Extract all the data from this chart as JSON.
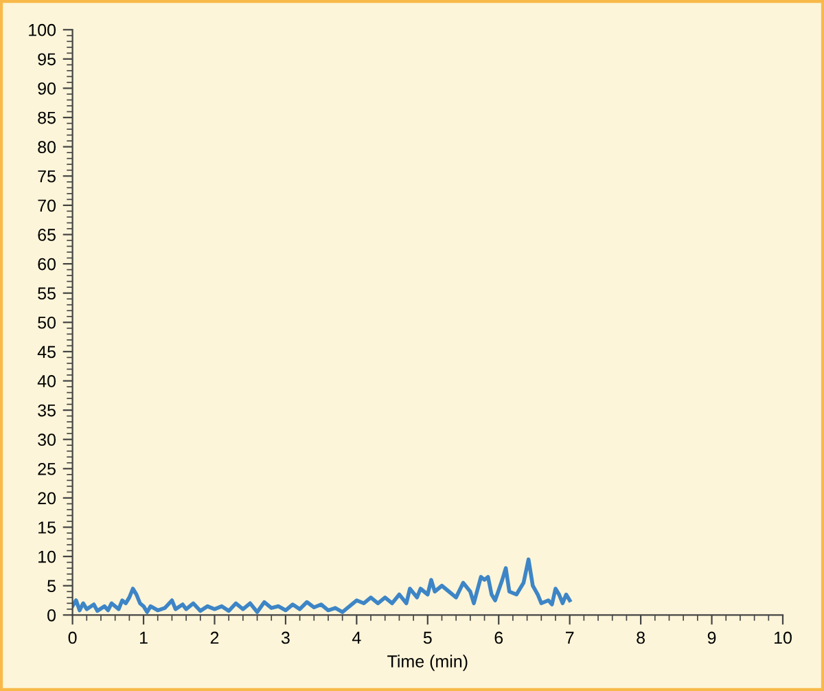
{
  "chart_data": {
    "type": "line",
    "xlabel": "Time (min)",
    "xlim": [
      0,
      10
    ],
    "xticks": [
      0,
      1,
      2,
      3,
      4,
      5,
      6,
      7,
      8,
      9,
      10
    ],
    "ylim": [
      0,
      100
    ],
    "yticks": [
      0,
      5,
      10,
      15,
      20,
      25,
      30,
      35,
      40,
      45,
      50,
      55,
      60,
      65,
      70,
      75,
      80,
      85,
      90,
      95,
      100
    ],
    "grid": false,
    "legend": false,
    "marker": "none",
    "line_style": "solid",
    "series": [
      {
        "color": "#3d85c6",
        "x": [
          0,
          0.05,
          0.1,
          0.15,
          0.2,
          0.3,
          0.35,
          0.45,
          0.5,
          0.55,
          0.65,
          0.7,
          0.75,
          0.8,
          0.85,
          0.9,
          0.95,
          1.0,
          1.05,
          1.1,
          1.2,
          1.3,
          1.4,
          1.45,
          1.55,
          1.6,
          1.7,
          1.8,
          1.9,
          2.0,
          2.1,
          2.2,
          2.3,
          2.4,
          2.5,
          2.6,
          2.7,
          2.8,
          2.9,
          3.0,
          3.1,
          3.2,
          3.3,
          3.4,
          3.5,
          3.6,
          3.7,
          3.8,
          3.9,
          4.0,
          4.1,
          4.2,
          4.3,
          4.4,
          4.5,
          4.6,
          4.7,
          4.75,
          4.85,
          4.9,
          5.0,
          5.05,
          5.1,
          5.2,
          5.3,
          5.4,
          5.5,
          5.6,
          5.65,
          5.75,
          5.8,
          5.85,
          5.9,
          5.95,
          6.05,
          6.1,
          6.15,
          6.25,
          6.3,
          6.35,
          6.42,
          6.48,
          6.55,
          6.6,
          6.7,
          6.75,
          6.8,
          6.85,
          6.9,
          6.95,
          7.0
        ],
        "values": [
          1.5,
          2.5,
          0.8,
          2,
          1,
          1.8,
          0.7,
          1.5,
          0.8,
          2,
          1,
          2.5,
          2,
          3,
          4.5,
          3.5,
          2,
          1.5,
          0.5,
          1.5,
          0.8,
          1.2,
          2.5,
          1,
          1.8,
          1,
          2,
          0.7,
          1.5,
          1,
          1.5,
          0.7,
          2,
          1,
          2,
          0.5,
          2.2,
          1.2,
          1.5,
          0.8,
          1.8,
          1,
          2.2,
          1.3,
          1.8,
          0.8,
          1.2,
          0.5,
          1.5,
          2.5,
          2,
          3,
          2,
          3,
          2,
          3.5,
          2,
          4.5,
          3,
          4.5,
          3.5,
          6,
          4,
          5,
          4,
          3,
          5.5,
          4,
          2,
          6.5,
          6,
          6.5,
          3.5,
          2.5,
          6,
          8,
          4,
          3.5,
          4.5,
          5.5,
          9.5,
          5,
          3.5,
          2,
          2.5,
          1.8,
          4.5,
          3.5,
          2,
          3.5,
          2.5
        ]
      }
    ]
  }
}
